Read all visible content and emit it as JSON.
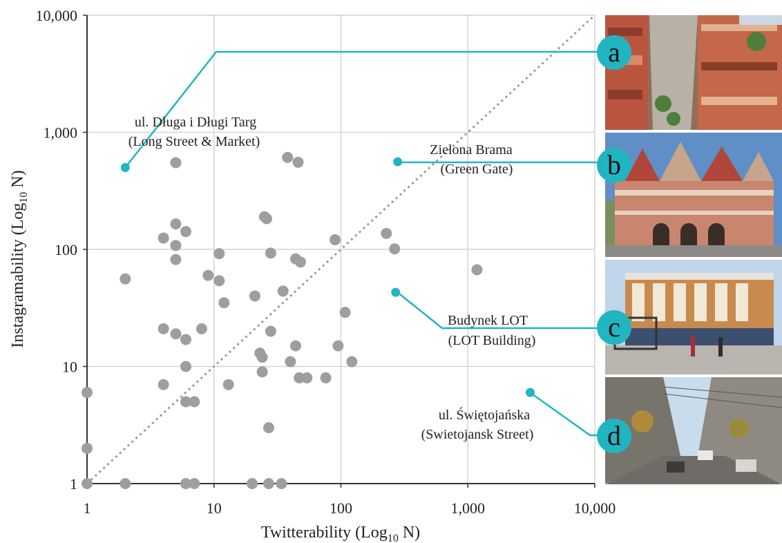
{
  "chart_data": {
    "type": "scatter",
    "x_scale": "log",
    "y_scale": "log",
    "xlim": [
      1,
      10000
    ],
    "ylim": [
      1,
      10000
    ],
    "xlabel": {
      "main": "Twitterability (Log",
      "sub": "10",
      "end": " N)"
    },
    "ylabel": {
      "main": "Instagramability (Log",
      "sub": "10",
      "end": " N)"
    },
    "x_ticks": [
      {
        "value": 1,
        "label": "1"
      },
      {
        "value": 10,
        "label": "10"
      },
      {
        "value": 100,
        "label": "100"
      },
      {
        "value": 1000,
        "label": "1,000"
      },
      {
        "value": 10000,
        "label": "10,000"
      }
    ],
    "y_ticks": [
      {
        "value": 1,
        "label": "1"
      },
      {
        "value": 10,
        "label": "10"
      },
      {
        "value": 100,
        "label": "100"
      },
      {
        "value": 1000,
        "label": "1,000"
      },
      {
        "value": 10000,
        "label": "10,000"
      }
    ],
    "grid": true,
    "reference_line": "y = x (dotted)",
    "colors": {
      "points": "#9e9e9e",
      "highlight": "#21b5c2",
      "grid": "#d4d4d4",
      "reference": "#9a9a9a"
    },
    "points": [
      [
        1,
        1
      ],
      [
        1,
        2
      ],
      [
        1,
        6
      ],
      [
        2,
        1
      ],
      [
        2,
        56
      ],
      [
        4,
        7
      ],
      [
        4,
        21
      ],
      [
        4,
        125
      ],
      [
        5,
        19
      ],
      [
        5,
        82
      ],
      [
        5,
        108
      ],
      [
        5,
        165
      ],
      [
        5,
        550
      ],
      [
        6,
        1
      ],
      [
        6,
        5
      ],
      [
        6,
        10
      ],
      [
        6,
        17
      ],
      [
        6,
        142
      ],
      [
        7,
        1
      ],
      [
        7,
        5
      ],
      [
        8,
        21
      ],
      [
        9,
        60
      ],
      [
        11,
        92
      ],
      [
        11,
        54
      ],
      [
        12,
        35
      ],
      [
        13,
        7
      ],
      [
        20,
        1
      ],
      [
        21,
        40
      ],
      [
        23,
        13
      ],
      [
        24,
        9
      ],
      [
        24,
        12
      ],
      [
        25,
        190
      ],
      [
        26,
        183
      ],
      [
        27,
        1
      ],
      [
        27,
        3
      ],
      [
        28,
        20
      ],
      [
        28,
        93
      ],
      [
        34,
        1
      ],
      [
        35,
        44
      ],
      [
        38,
        610
      ],
      [
        40,
        11
      ],
      [
        44,
        15
      ],
      [
        44,
        83
      ],
      [
        46,
        555
      ],
      [
        47,
        8
      ],
      [
        48,
        78
      ],
      [
        54,
        8
      ],
      [
        76,
        8
      ],
      [
        90,
        121
      ],
      [
        95,
        15
      ],
      [
        108,
        29
      ],
      [
        122,
        11
      ],
      [
        228,
        137
      ],
      [
        265,
        101
      ],
      [
        1180,
        67
      ]
    ],
    "highlights": [
      {
        "id": "a",
        "x": 2,
        "y": 500,
        "label": "ul. Długa i Długi Targ",
        "sublabel": "(Long Street & Market)"
      },
      {
        "id": "b",
        "x": 280,
        "y": 560,
        "label": "Zielona Brama",
        "sublabel": "(Green Gate)"
      },
      {
        "id": "c",
        "x": 270,
        "y": 43,
        "label": "Budynek LOT",
        "sublabel": "(LOT Building)"
      },
      {
        "id": "d",
        "x": 3100,
        "y": 6,
        "label": "ul. Świętojańska",
        "sublabel": "(Swietojansk Street)"
      }
    ]
  },
  "photos": [
    {
      "id": "a",
      "letter": "a",
      "scene": "market-street"
    },
    {
      "id": "b",
      "letter": "b",
      "scene": "green-gate"
    },
    {
      "id": "c",
      "letter": "c",
      "scene": "lot-building"
    },
    {
      "id": "d",
      "letter": "d",
      "scene": "tram-street"
    }
  ]
}
